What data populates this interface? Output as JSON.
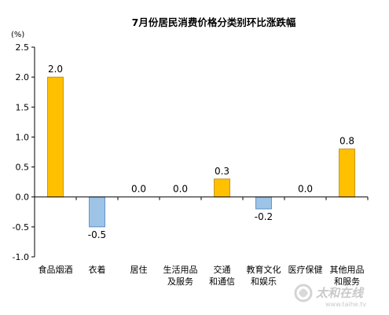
{
  "chart_data": {
    "type": "bar",
    "title": "7月份居民消费价格分类别环比涨跌幅",
    "unit_label": "(%)",
    "categories": [
      "食品烟酒",
      "衣着",
      "居住",
      "生活用品及服务",
      "交通和通信",
      "教育文化和娱乐",
      "医疗保健",
      "其他用品和服务"
    ],
    "category_lines": [
      [
        "食品烟酒"
      ],
      [
        "衣着"
      ],
      [
        "居住"
      ],
      [
        "生活用品",
        "及服务"
      ],
      [
        "交通",
        "和通信"
      ],
      [
        "教育文化",
        "和娱乐"
      ],
      [
        "医疗保健"
      ],
      [
        "其他用品",
        "和服务"
      ]
    ],
    "values": [
      2.0,
      -0.5,
      0.0,
      0.0,
      0.3,
      -0.2,
      0.0,
      0.8
    ],
    "data_labels": [
      "2.0",
      "-0.5",
      "0.0",
      "0.0",
      "0.3",
      "-0.2",
      "0.0",
      "0.8"
    ],
    "ylim": [
      -1.0,
      2.5
    ],
    "yticks": [
      -1.0,
      -0.5,
      0.0,
      0.5,
      1.0,
      1.5,
      2.0,
      2.5
    ],
    "ytick_labels": [
      "-1.0",
      "-0.5",
      "0.0",
      "0.5",
      "1.0",
      "1.5",
      "2.0",
      "2.5"
    ],
    "grid": false,
    "legend": "none",
    "colors": {
      "positive": "#FFC000",
      "positive_edge": "#B8860B",
      "negative": "#9DC3E6",
      "negative_edge": "#4F81BD",
      "axis": "#000000"
    }
  },
  "watermark": {
    "text": "太和在线",
    "subtext": "www.taihe.tv",
    "icon": "swirl-logo-icon"
  }
}
